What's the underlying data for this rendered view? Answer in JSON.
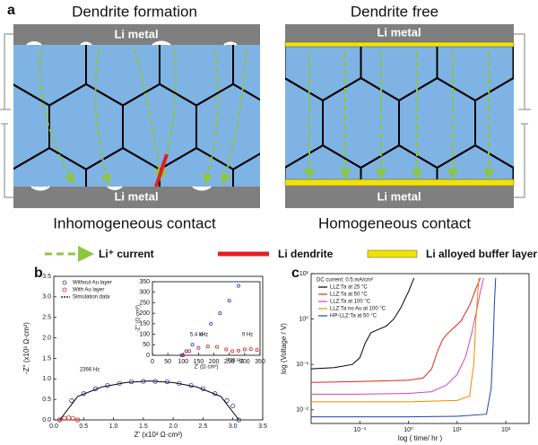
{
  "panel_a": {
    "label": "a",
    "left_title": "Dendrite formation",
    "right_title": "Dendrite free",
    "left_caption": "Inhomogeneous contact",
    "right_caption": "Homogeneous contact",
    "metal_labels": [
      "Li metal",
      "Li metal",
      "Li metal",
      "Li metal"
    ],
    "legend": [
      "Li⁺ current",
      "Li dendrite",
      "Li alloyed buffer layer"
    ]
  },
  "chart_data": [
    {
      "type": "scatter",
      "panel_label": "b",
      "xlabel": "Z' (x10³ Ω·cm²)",
      "ylabel": "-Z'' (x10³ Ω·cm²)",
      "xlim": [
        0,
        3.5
      ],
      "ylim": [
        0,
        3.5
      ],
      "xticks": [
        {
          "value": 0,
          "label": "0.0"
        },
        0.5,
        {
          "value": 1,
          "label": "1.0"
        },
        1.5,
        {
          "value": 2,
          "label": "2.0"
        },
        2.5,
        {
          "value": 3,
          "label": "3.0"
        },
        3.5
      ],
      "yticks": [
        {
          "value": 0,
          "label": "0.0"
        },
        0.5,
        {
          "value": 1,
          "label": "1.0"
        },
        1.5,
        {
          "value": 2,
          "label": "2.0"
        },
        2.5,
        {
          "value": 3,
          "label": "3.0"
        },
        3.5
      ],
      "legend": true,
      "series": [
        {
          "name": "Without Au layer",
          "color": "#1f3fae",
          "mode": "markers",
          "x": [
            0.1,
            0.3,
            0.5,
            0.7,
            0.9,
            1.1,
            1.3,
            1.5,
            1.7,
            1.9,
            2.1,
            2.3,
            2.5,
            2.7,
            2.9,
            3.0,
            3.1
          ],
          "values": [
            0,
            0.47,
            0.64,
            0.76,
            0.84,
            0.89,
            0.93,
            0.94,
            0.94,
            0.93,
            0.89,
            0.84,
            0.76,
            0.64,
            0.47,
            0.34,
            0
          ]
        },
        {
          "name": "With Au layer",
          "color": "#d42020",
          "mode": "markers",
          "x": [
            0.1,
            0.18,
            0.25,
            0.32,
            0.4
          ],
          "values": [
            0,
            0.04,
            0.05,
            0.04,
            0
          ]
        },
        {
          "name": "Simulation data",
          "color": "#000000",
          "mode": "line",
          "x": [
            0.1,
            0.4,
            0.8,
            1.2,
            1.6,
            2.0,
            2.4,
            2.8,
            3.1
          ],
          "values": [
            0,
            0.57,
            0.8,
            0.91,
            0.95,
            0.91,
            0.8,
            0.57,
            0
          ]
        }
      ],
      "annotations": [
        "738 Hz",
        "2366 Hz"
      ]
    },
    {
      "type": "scatter",
      "xlabel": "Z' (Ω·cm²)",
      "ylabel": "-Z'' (Ω·cm²)",
      "xlim": [
        0,
        350
      ],
      "ylim": [
        0,
        350
      ],
      "xticks": [
        0,
        50,
        100,
        150,
        200,
        250,
        300,
        350
      ],
      "yticks": [
        0,
        50,
        100,
        150,
        200,
        250,
        300,
        350
      ],
      "legend": false,
      "series": [
        {
          "name": "Without Au layer",
          "color": "#1f3fae",
          "mode": "markers",
          "x": [
            95,
            110,
            130,
            160,
            190,
            220,
            250,
            280
          ],
          "values": [
            0,
            20,
            50,
            100,
            150,
            200,
            260,
            330
          ]
        },
        {
          "name": "With Au layer",
          "color": "#d42020",
          "mode": "markers",
          "x": [
            100,
            120,
            150,
            180,
            210,
            240,
            260,
            280,
            300,
            320,
            340
          ],
          "values": [
            0,
            20,
            35,
            42,
            40,
            28,
            20,
            22,
            28,
            30,
            25
          ]
        }
      ],
      "annotations": [
        "5.4 kHz",
        "9 Hz"
      ]
    },
    {
      "type": "line",
      "panel_label": "c",
      "xlabel": "log ( time/ hr )",
      "ylabel": "log (Voltage / V)",
      "xlog": true,
      "ylog": true,
      "xlim": [
        0.01,
        300
      ],
      "ylim": [
        0.005,
        10
      ],
      "xticks": [
        {
          "value": 0.1,
          "label": "10⁻¹"
        },
        {
          "value": 1,
          "label": "10⁰"
        },
        {
          "value": 10,
          "label": "10¹"
        },
        {
          "value": 100,
          "label": "10²"
        }
      ],
      "yticks": [
        {
          "value": 0.01,
          "label": "10⁻²"
        },
        {
          "value": 0.1,
          "label": "10⁻¹"
        },
        {
          "value": 1,
          "label": "10⁰"
        },
        {
          "value": 10,
          "label": "10¹"
        }
      ],
      "note": "DC current: 0.5 mA/cm²",
      "legend": true,
      "series": [
        {
          "name": "LLZ:Ta at 25 °C",
          "color": "#000000",
          "mode": "line",
          "x": [
            0.01,
            0.03,
            0.07,
            0.1,
            0.13,
            0.17,
            0.25,
            0.35,
            0.5,
            0.7,
            1,
            1.3
          ],
          "values": [
            0.08,
            0.085,
            0.1,
            0.14,
            0.3,
            0.5,
            0.6,
            0.7,
            1,
            1.8,
            4,
            8
          ]
        },
        {
          "name": "LLZ:Ta at 50 °C",
          "color": "#e0261c",
          "mode": "line",
          "x": [
            0.01,
            0.1,
            1,
            2,
            3,
            4,
            5,
            6,
            8,
            12,
            18,
            25,
            30
          ],
          "values": [
            0.04,
            0.042,
            0.045,
            0.05,
            0.08,
            0.2,
            0.35,
            0.45,
            0.6,
            0.9,
            2,
            5,
            8
          ]
        },
        {
          "name": "LLZ:Ta at 100 °C",
          "color": "#cc44cc",
          "mode": "line",
          "x": [
            0.01,
            0.1,
            1,
            3,
            6,
            10,
            15,
            20,
            25,
            30,
            35
          ],
          "values": [
            0.022,
            0.022,
            0.023,
            0.025,
            0.035,
            0.06,
            0.15,
            0.5,
            1.5,
            4,
            8
          ]
        },
        {
          "name": "LLZ:Ta no Au at 100 °C",
          "color": "#f28a00",
          "mode": "line",
          "x": [
            0.01,
            0.1,
            1,
            10,
            18,
            22,
            24,
            26,
            28
          ],
          "values": [
            0.015,
            0.015,
            0.015,
            0.016,
            0.02,
            0.1,
            0.8,
            3,
            8
          ]
        },
        {
          "name": "HP-LLZ:Ta at 50 °C",
          "color": "#1f3fae",
          "mode": "line",
          "x": [
            0.01,
            0.1,
            1,
            10,
            40,
            50,
            55,
            58,
            62
          ],
          "values": [
            0.007,
            0.007,
            0.007,
            0.0072,
            0.008,
            0.03,
            0.3,
            2,
            8
          ]
        }
      ]
    }
  ]
}
